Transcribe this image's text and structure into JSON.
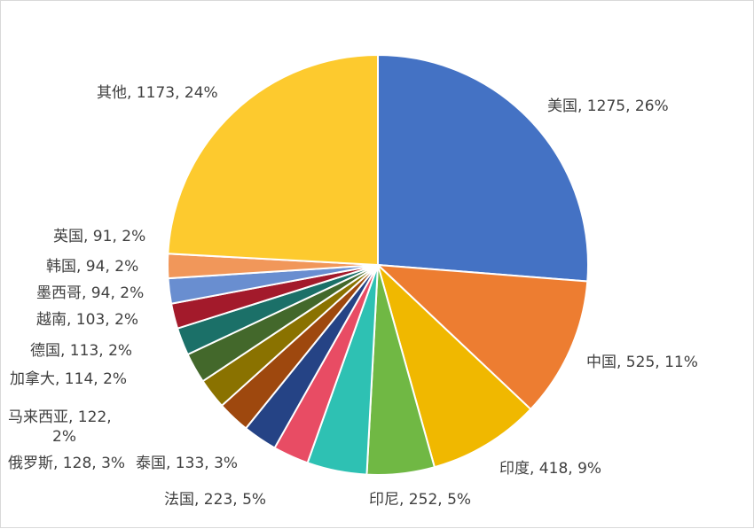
{
  "chart_data": {
    "type": "pie",
    "title": "",
    "slices": [
      {
        "category": "美国",
        "value": 1275,
        "percent": "26%",
        "color": "#4472C4",
        "label_lines": [
          "美国, 1275, 26%"
        ]
      },
      {
        "category": "中国",
        "value": 525,
        "percent": "11%",
        "color": "#ED7D31",
        "label_lines": [
          "中国, 525, 11%"
        ]
      },
      {
        "category": "印度",
        "value": 418,
        "percent": "9%",
        "color": "#F0B800",
        "label_lines": [
          "印度, 418, 9%"
        ]
      },
      {
        "category": "印尼",
        "value": 252,
        "percent": "5%",
        "color": "#70B844",
        "label_lines": [
          "印尼, 252, 5%"
        ]
      },
      {
        "category": "法国",
        "value": 223,
        "percent": "5%",
        "color": "#2EC1B3",
        "label_lines": [
          "法国, 223, 5%"
        ]
      },
      {
        "category": "泰国",
        "value": 133,
        "percent": "3%",
        "color": "#E84C64",
        "label_lines": [
          "泰国, 133, 3%"
        ]
      },
      {
        "category": "俄罗斯",
        "value": 128,
        "percent": "3%",
        "color": "#254385",
        "label_lines": [
          "俄罗斯, 128, 3%"
        ]
      },
      {
        "category": "马来西亚",
        "value": 122,
        "percent": "2%",
        "color": "#9E480E",
        "label_lines": [
          "马来西亚, 122,",
          "2%"
        ]
      },
      {
        "category": "加拿大",
        "value": 114,
        "percent": "2%",
        "color": "#8A7200",
        "label_lines": [
          "加拿大, 114, 2%"
        ]
      },
      {
        "category": "德国",
        "value": 113,
        "percent": "2%",
        "color": "#43682B",
        "label_lines": [
          "德国, 113, 2%"
        ]
      },
      {
        "category": "越南",
        "value": 103,
        "percent": "2%",
        "color": "#1B7068",
        "label_lines": [
          "越南, 103, 2%"
        ]
      },
      {
        "category": "墨西哥",
        "value": 94,
        "percent": "2%",
        "color": "#A31A2B",
        "label_lines": [
          "墨西哥, 94, 2%"
        ]
      },
      {
        "category": "韩国",
        "value": 94,
        "percent": "2%",
        "color": "#698ED0",
        "label_lines": [
          "韩国, 94, 2%"
        ]
      },
      {
        "category": "英国",
        "value": 91,
        "percent": "2%",
        "color": "#F1975A",
        "label_lines": [
          "英国, 91, 2%"
        ]
      },
      {
        "category": "其他",
        "value": 1173,
        "percent": "24%",
        "color": "#FDCA2E",
        "label_lines": [
          "其他, 1173, 24%"
        ]
      }
    ],
    "legend": "none",
    "start_angle": "12 o'clock",
    "direction": "clockwise"
  }
}
